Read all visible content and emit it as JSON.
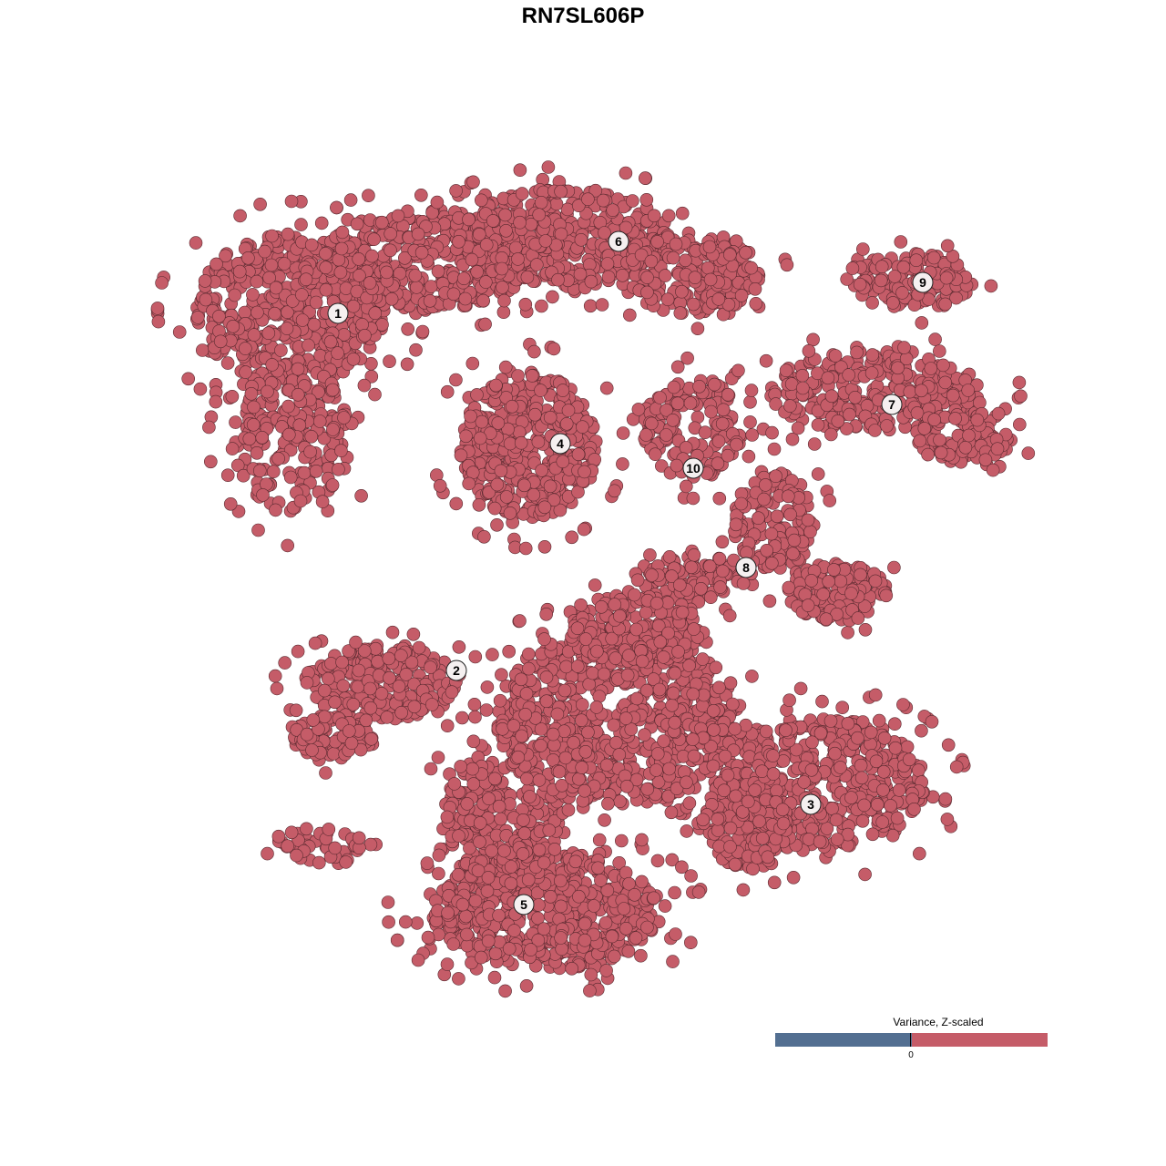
{
  "chart_data": {
    "type": "scatter",
    "title": "RN7SL606P",
    "xlabel": "",
    "ylabel": "",
    "grid": false,
    "axes_visible": false,
    "point_color": "#c55c68",
    "point_stroke": "#5a2a30",
    "clusters": [
      {
        "label": "1",
        "x": -26.9,
        "y": 29.6
      },
      {
        "label": "2",
        "x": -13.9,
        "y": -9.6
      },
      {
        "label": "3",
        "x": 25.0,
        "y": -24.3
      },
      {
        "label": "4",
        "x": -2.5,
        "y": 15.3
      },
      {
        "label": "5",
        "x": -6.5,
        "y": -35.3
      },
      {
        "label": "6",
        "x": 3.9,
        "y": 37.5
      },
      {
        "label": "7",
        "x": 33.9,
        "y": 19.6
      },
      {
        "label": "8",
        "x": 17.9,
        "y": 1.7
      },
      {
        "label": "9",
        "x": 37.3,
        "y": 33.0
      },
      {
        "label": "10",
        "x": 12.1,
        "y": 12.6
      }
    ],
    "legend": {
      "title": "Variance, Z-scaled",
      "placement": "bottom-right",
      "tick_label": "0",
      "low_color": "#536f91",
      "high_color": "#c55c68"
    }
  }
}
